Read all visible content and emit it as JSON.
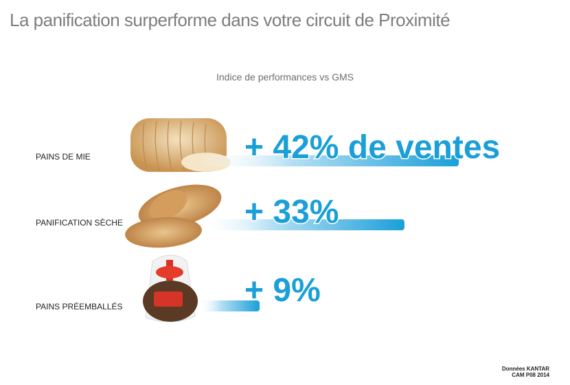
{
  "title": "La panification surperforme dans votre circuit de Proximité",
  "chart_data": {
    "type": "bar",
    "title": "",
    "subtitle": "Indice de performances vs GMS",
    "categories": [
      "PAINS DE MIE",
      "PANIFICATION SÈCHE",
      "PAINS PRÉEMBALLÉS"
    ],
    "values": [
      42,
      33,
      9
    ],
    "unit": "%",
    "data_labels": [
      "+ 42% de ventes",
      "+ 33%",
      "+ 9%"
    ],
    "legend": "none",
    "grid": false,
    "bar_color": "#1a9fd8"
  },
  "source": {
    "line1": "Données KANTAR",
    "line2": "CAM P08 2014"
  },
  "colors": {
    "title": "#7d7d7d",
    "accent": "#1a9fd8"
  }
}
